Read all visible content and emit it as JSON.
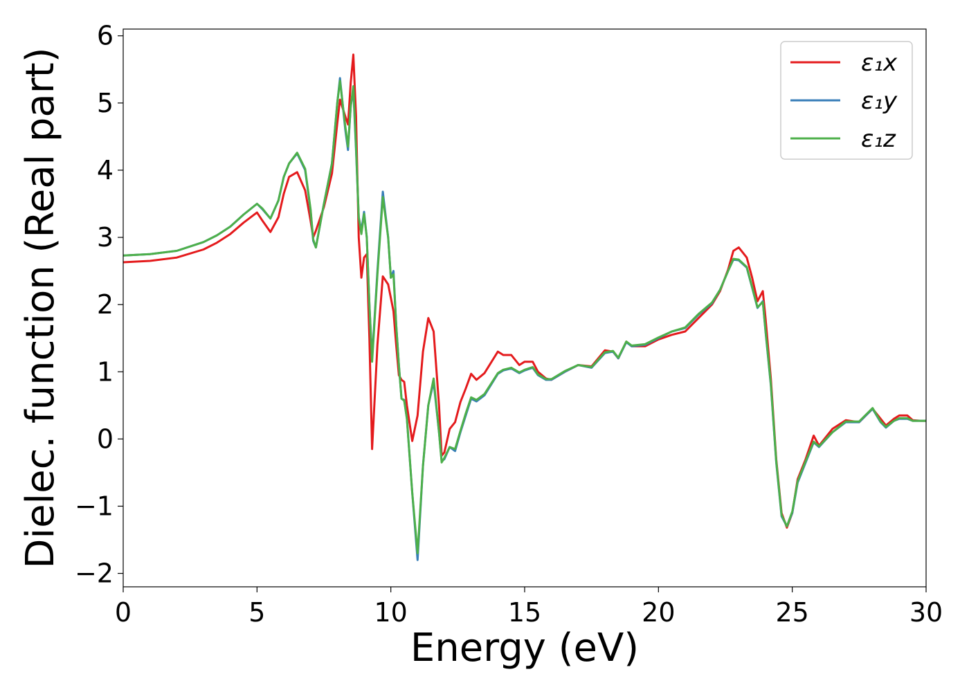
{
  "chart_data": {
    "type": "line",
    "xlabel": "Energy (eV)",
    "ylabel": "Dielec. function (Real part)",
    "xlim": [
      0,
      30
    ],
    "ylim": [
      -2.2,
      6.1
    ],
    "xticks": [
      0,
      5,
      10,
      15,
      20,
      25,
      30
    ],
    "xtick_labels": [
      "0",
      "5",
      "10",
      "15",
      "20",
      "25",
      "30"
    ],
    "yticks": [
      -2,
      -1,
      0,
      1,
      2,
      3,
      4,
      5,
      6
    ],
    "ytick_labels": [
      "−2",
      "−1",
      "0",
      "1",
      "2",
      "3",
      "4",
      "5",
      "6"
    ],
    "grid": false,
    "legend_position": "top-right",
    "series": [
      {
        "name": "ε₁x",
        "color": "#e41a1c",
        "x": [
          0,
          1,
          2,
          3,
          3.5,
          4,
          4.5,
          5,
          5.2,
          5.5,
          5.8,
          6,
          6.2,
          6.5,
          6.8,
          7,
          7.1,
          7.2,
          7.5,
          7.8,
          8,
          8.1,
          8.3,
          8.4,
          8.5,
          8.6,
          8.7,
          8.8,
          8.9,
          9,
          9.1,
          9.2,
          9.3,
          9.5,
          9.7,
          9.9,
          10,
          10.1,
          10.2,
          10.3,
          10.4,
          10.5,
          10.6,
          10.8,
          11,
          11.2,
          11.4,
          11.6,
          11.8,
          11.9,
          12,
          12.2,
          12.4,
          12.6,
          12.8,
          13,
          13.2,
          13.5,
          14,
          14.2,
          14.5,
          14.8,
          15,
          15.3,
          15.5,
          15.8,
          16,
          16.5,
          17,
          17.5,
          18,
          18.3,
          18.5,
          18.8,
          19,
          19.5,
          20,
          20.5,
          21,
          21.5,
          22,
          22.3,
          22.6,
          22.8,
          23,
          23.3,
          23.5,
          23.7,
          23.9,
          24,
          24.2,
          24.4,
          24.6,
          24.8,
          25,
          25.2,
          25.5,
          25.8,
          26,
          26.5,
          27,
          27.5,
          28,
          28.3,
          28.5,
          28.8,
          29,
          29.3,
          29.5,
          29.8,
          30
        ],
        "values": [
          2.63,
          2.65,
          2.7,
          2.82,
          2.92,
          3.05,
          3.22,
          3.37,
          3.25,
          3.08,
          3.3,
          3.65,
          3.9,
          3.97,
          3.7,
          3.25,
          3.0,
          3.1,
          3.45,
          3.95,
          4.7,
          5.05,
          4.8,
          4.68,
          5.3,
          5.72,
          4.8,
          3.0,
          2.4,
          2.7,
          2.75,
          1.5,
          -0.15,
          1.4,
          2.42,
          2.3,
          2.1,
          1.9,
          1.4,
          0.95,
          0.88,
          0.85,
          0.5,
          -0.03,
          0.35,
          1.3,
          1.8,
          1.6,
          0.5,
          -0.25,
          -0.2,
          0.15,
          0.25,
          0.55,
          0.75,
          0.97,
          0.88,
          0.98,
          1.3,
          1.25,
          1.25,
          1.1,
          1.15,
          1.15,
          1.0,
          0.9,
          0.88,
          1.0,
          1.1,
          1.08,
          1.32,
          1.3,
          1.2,
          1.45,
          1.38,
          1.38,
          1.48,
          1.55,
          1.6,
          1.8,
          2.0,
          2.2,
          2.52,
          2.8,
          2.85,
          2.7,
          2.4,
          2.05,
          2.2,
          1.8,
          0.9,
          -0.3,
          -1.1,
          -1.32,
          -1.1,
          -0.6,
          -0.3,
          0.05,
          -0.1,
          0.15,
          0.28,
          0.25,
          0.45,
          0.3,
          0.2,
          0.3,
          0.35,
          0.35,
          0.28,
          0.27,
          0.27
        ]
      },
      {
        "name": "ε₁y",
        "color": "#377eb8",
        "x": [
          0,
          1,
          2,
          3,
          3.5,
          4,
          4.5,
          5,
          5.2,
          5.5,
          5.8,
          6,
          6.2,
          6.5,
          6.8,
          7,
          7.1,
          7.2,
          7.5,
          7.8,
          8,
          8.1,
          8.3,
          8.4,
          8.5,
          8.6,
          8.7,
          8.8,
          8.9,
          9,
          9.1,
          9.2,
          9.3,
          9.5,
          9.7,
          9.9,
          10,
          10.1,
          10.2,
          10.3,
          10.4,
          10.5,
          10.6,
          10.8,
          11,
          11.2,
          11.4,
          11.6,
          11.8,
          11.9,
          12,
          12.2,
          12.4,
          12.6,
          12.8,
          13,
          13.2,
          13.5,
          14,
          14.2,
          14.5,
          14.8,
          15,
          15.3,
          15.5,
          15.8,
          16,
          16.5,
          17,
          17.5,
          18,
          18.3,
          18.5,
          18.8,
          19,
          19.5,
          20,
          20.5,
          21,
          21.5,
          22,
          22.3,
          22.6,
          22.8,
          23,
          23.3,
          23.5,
          23.7,
          23.9,
          24,
          24.2,
          24.4,
          24.6,
          24.8,
          25,
          25.2,
          25.5,
          25.8,
          26,
          26.5,
          27,
          27.5,
          28,
          28.3,
          28.5,
          28.8,
          29,
          29.3,
          29.5,
          29.8,
          30
        ],
        "values": [
          2.73,
          2.75,
          2.8,
          2.93,
          3.03,
          3.16,
          3.34,
          3.5,
          3.42,
          3.28,
          3.55,
          3.9,
          4.1,
          4.25,
          4.0,
          3.4,
          2.95,
          2.85,
          3.5,
          4.1,
          5.0,
          5.37,
          4.6,
          4.3,
          4.95,
          5.2,
          4.3,
          3.3,
          3.1,
          3.38,
          3.0,
          2.0,
          1.2,
          2.5,
          3.68,
          3.0,
          2.4,
          2.5,
          1.7,
          1.1,
          0.6,
          0.58,
          0.3,
          -0.8,
          -1.8,
          -0.4,
          0.5,
          0.85,
          0.1,
          -0.33,
          -0.3,
          -0.12,
          -0.18,
          0.1,
          0.35,
          0.6,
          0.56,
          0.65,
          0.97,
          1.02,
          1.05,
          0.98,
          1.02,
          1.06,
          0.95,
          0.88,
          0.88,
          1.0,
          1.1,
          1.06,
          1.28,
          1.3,
          1.2,
          1.44,
          1.38,
          1.4,
          1.5,
          1.6,
          1.65,
          1.85,
          2.02,
          2.22,
          2.5,
          2.67,
          2.66,
          2.55,
          2.25,
          1.95,
          2.05,
          1.6,
          0.8,
          -0.35,
          -1.15,
          -1.3,
          -1.1,
          -0.65,
          -0.35,
          -0.05,
          -0.12,
          0.1,
          0.25,
          0.25,
          0.45,
          0.25,
          0.17,
          0.27,
          0.3,
          0.3,
          0.27,
          0.27,
          0.27
        ]
      },
      {
        "name": "ε₁z",
        "color": "#4daf4a",
        "x": [
          0,
          1,
          2,
          3,
          3.5,
          4,
          4.5,
          5,
          5.2,
          5.5,
          5.8,
          6,
          6.2,
          6.5,
          6.8,
          7,
          7.1,
          7.2,
          7.5,
          7.8,
          8,
          8.1,
          8.3,
          8.4,
          8.5,
          8.6,
          8.7,
          8.8,
          8.9,
          9,
          9.1,
          9.2,
          9.3,
          9.5,
          9.7,
          9.9,
          10,
          10.1,
          10.2,
          10.3,
          10.4,
          10.5,
          10.6,
          10.8,
          11,
          11.2,
          11.4,
          11.6,
          11.8,
          11.9,
          12,
          12.2,
          12.4,
          12.6,
          12.8,
          13,
          13.2,
          13.5,
          14,
          14.2,
          14.5,
          14.8,
          15,
          15.3,
          15.5,
          15.8,
          16,
          16.5,
          17,
          17.5,
          18,
          18.3,
          18.5,
          18.8,
          19,
          19.5,
          20,
          20.5,
          21,
          21.5,
          22,
          22.3,
          22.6,
          22.8,
          23,
          23.3,
          23.5,
          23.7,
          23.9,
          24,
          24.2,
          24.4,
          24.6,
          24.8,
          25,
          25.2,
          25.5,
          25.8,
          26,
          26.5,
          27,
          27.5,
          28,
          28.3,
          28.5,
          28.8,
          29,
          29.3,
          29.5,
          29.8,
          30
        ],
        "values": [
          2.73,
          2.75,
          2.8,
          2.93,
          3.03,
          3.16,
          3.34,
          3.5,
          3.43,
          3.28,
          3.55,
          3.9,
          4.1,
          4.26,
          4.02,
          3.42,
          2.97,
          2.85,
          3.5,
          4.1,
          5.0,
          5.33,
          4.65,
          4.35,
          4.95,
          5.25,
          4.35,
          3.3,
          3.05,
          3.35,
          3.0,
          2.0,
          1.15,
          2.45,
          3.6,
          3.0,
          2.4,
          2.45,
          1.7,
          1.1,
          0.6,
          0.57,
          0.3,
          -0.8,
          -1.7,
          -0.4,
          0.5,
          0.9,
          0.1,
          -0.35,
          -0.28,
          -0.12,
          -0.15,
          0.12,
          0.38,
          0.62,
          0.58,
          0.67,
          0.98,
          1.03,
          1.06,
          0.99,
          1.03,
          1.07,
          0.96,
          0.89,
          0.89,
          1.01,
          1.1,
          1.07,
          1.29,
          1.31,
          1.21,
          1.45,
          1.39,
          1.41,
          1.51,
          1.6,
          1.66,
          1.86,
          2.03,
          2.22,
          2.5,
          2.68,
          2.67,
          2.56,
          2.26,
          1.96,
          2.04,
          1.62,
          0.82,
          -0.33,
          -1.13,
          -1.3,
          -1.08,
          -0.63,
          -0.33,
          -0.04,
          -0.11,
          0.1,
          0.26,
          0.26,
          0.46,
          0.26,
          0.18,
          0.27,
          0.31,
          0.31,
          0.27,
          0.27,
          0.27
        ]
      }
    ]
  }
}
